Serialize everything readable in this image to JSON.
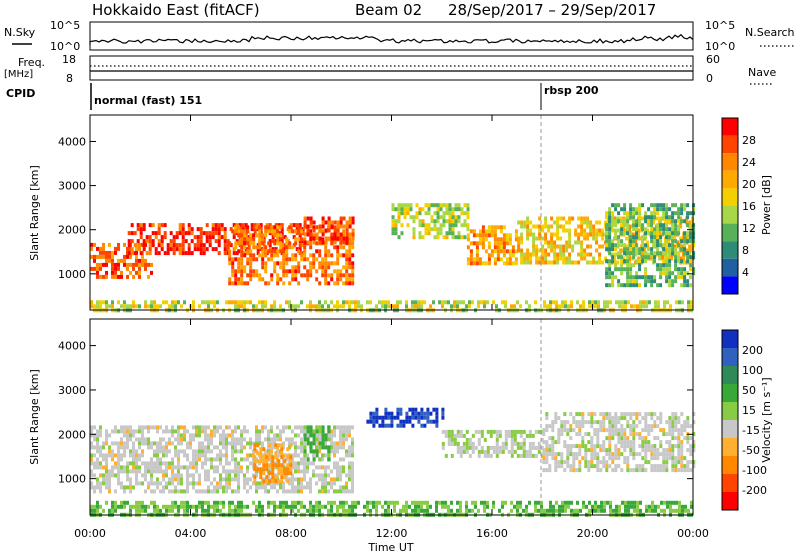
{
  "header": {
    "radar": "Hokkaido East (fitACF)",
    "beam": "Beam 02",
    "dates": "28/Sep/2017 – 29/Sep/2017"
  },
  "top_panels": {
    "nsky_label": "N.Sky",
    "nsky_ticks": [
      "10^5",
      "10^0"
    ],
    "nsearch_label": "N.Search",
    "nsearch_ticks": [
      "10^5",
      "10^0"
    ],
    "freq_label": "Freq.",
    "freq_unit": "[MHz]",
    "freq_ticks": [
      "18",
      "8"
    ],
    "nave_label": "Nave",
    "nave_ticks": [
      "60",
      "0"
    ],
    "cpid_label": "CPID",
    "cpid_segments": [
      {
        "label": "normal (fast) 151",
        "start_hour": 0
      },
      {
        "label": "rbsp 200",
        "start_hour": 18
      }
    ]
  },
  "axes": {
    "x_ticks": [
      "00:00",
      "04:00",
      "08:00",
      "12:00",
      "16:00",
      "20:00",
      "00:00"
    ],
    "x_label": "Time UT",
    "y_label": "Slant Range [km]",
    "y_ticks": [
      "1000",
      "2000",
      "3000",
      "4000"
    ]
  },
  "chart_data": [
    {
      "type": "heatmap",
      "panel": "power",
      "title": "",
      "xlabel": "Time UT",
      "ylabel": "Slant Range [km]",
      "xlim_hours": [
        0,
        24
      ],
      "ylim_km": [
        180,
        4600
      ],
      "colorbar_label": "Power [dB]",
      "colorbar_ticks": [
        "28",
        "24",
        "20",
        "16",
        "12",
        "8",
        "4"
      ],
      "colorbar_colors": [
        "#ff0000",
        "#ff4400",
        "#ff8800",
        "#ffaa00",
        "#f5d000",
        "#a8d848",
        "#58b058",
        "#2e8b78",
        "#2060a0",
        "#0000ff"
      ],
      "regions": [
        {
          "t0": 0.0,
          "t1": 2.5,
          "r0": 900,
          "r1": 1700,
          "level": 0.85
        },
        {
          "t0": 1.5,
          "t1": 8.5,
          "r0": 1500,
          "r1": 2150,
          "level": 0.95
        },
        {
          "t0": 5.5,
          "t1": 10.5,
          "r0": 800,
          "r1": 2100,
          "level": 0.8
        },
        {
          "t0": 8.5,
          "t1": 10.5,
          "r0": 1700,
          "r1": 2300,
          "level": 0.9
        },
        {
          "t0": 12.0,
          "t1": 15.0,
          "r0": 1800,
          "r1": 2600,
          "level": 0.45
        },
        {
          "t0": 15.0,
          "t1": 17.0,
          "r0": 1200,
          "r1": 2100,
          "level": 0.7
        },
        {
          "t0": 17.0,
          "t1": 24.0,
          "r0": 1300,
          "r1": 2300,
          "level": 0.6
        },
        {
          "t0": 20.5,
          "t1": 24.0,
          "r0": 700,
          "r1": 2600,
          "level": 0.35
        },
        {
          "t0": 0.0,
          "t1": 24.0,
          "r0": 200,
          "r1": 400,
          "level": 0.5
        }
      ]
    },
    {
      "type": "heatmap",
      "panel": "velocity",
      "title": "",
      "xlabel": "Time UT",
      "ylabel": "Slant Range [km]",
      "xlim_hours": [
        0,
        24
      ],
      "ylim_km": [
        180,
        4600
      ],
      "colorbar_label": "Velocity [m s⁻¹]",
      "colorbar_ticks": [
        "200",
        "100",
        "50",
        "15",
        "-15",
        "-50",
        "-100",
        "-200"
      ],
      "colorbar_colors": [
        "#1030c0",
        "#3060c0",
        "#2e8b57",
        "#38a838",
        "#88cc44",
        "#c8c8c8",
        "#ffb030",
        "#ff8800",
        "#ff4400",
        "#ff0000"
      ],
      "regions": [
        {
          "t0": 0.0,
          "t1": 10.5,
          "r0": 700,
          "r1": 2200,
          "level": 0.0
        },
        {
          "t0": 6.5,
          "t1": 8.0,
          "r0": 900,
          "r1": 1800,
          "level": -0.4
        },
        {
          "t0": 8.5,
          "t1": 9.5,
          "r0": 1400,
          "r1": 2200,
          "level": 0.35
        },
        {
          "t0": 11.0,
          "t1": 14.0,
          "r0": 2200,
          "r1": 2600,
          "level": 0.95
        },
        {
          "t0": 14.0,
          "t1": 18.0,
          "r0": 1500,
          "r1": 2100,
          "level": 0.1
        },
        {
          "t0": 18.0,
          "t1": 24.0,
          "r0": 1200,
          "r1": 2500,
          "level": 0.0
        },
        {
          "t0": 0.0,
          "t1": 24.0,
          "r0": 200,
          "r1": 500,
          "level": 0.3
        }
      ]
    }
  ]
}
